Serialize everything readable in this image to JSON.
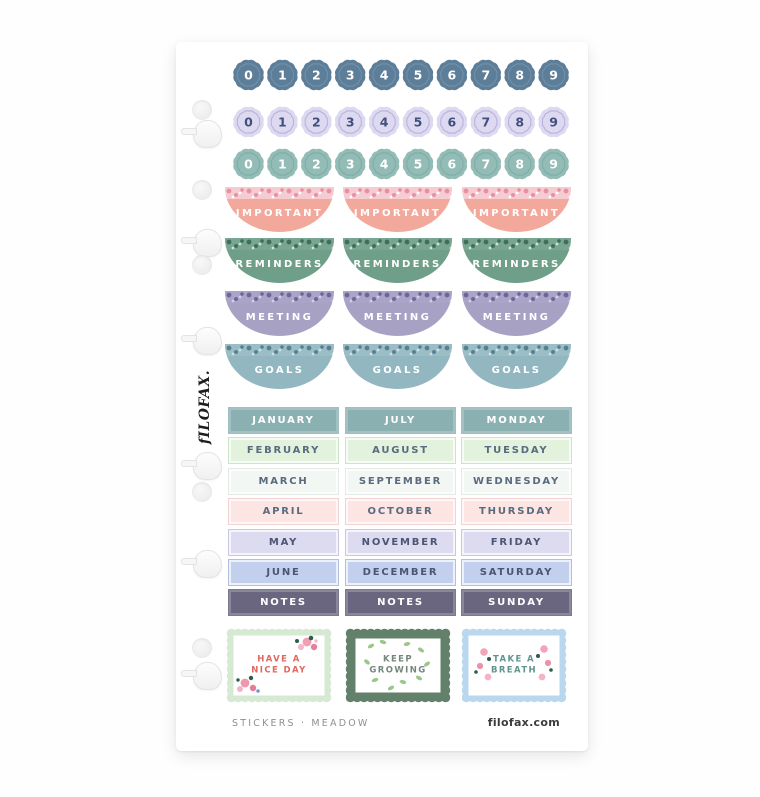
{
  "sheet": {
    "brand_vertical": "fILOFAX.",
    "footer_left": "STICKERS · MEADOW",
    "footer_right": "filofax.com"
  },
  "number_rows": [
    {
      "name": "numbers-slate",
      "digits": [
        "0",
        "1",
        "2",
        "3",
        "4",
        "5",
        "6",
        "7",
        "8",
        "9"
      ],
      "fill": "#5d7e99",
      "digit_color": "#ffffff",
      "inner_stroke": "rgba(255,255,255,0.15)"
    },
    {
      "name": "numbers-lavender",
      "digits": [
        "0",
        "1",
        "2",
        "3",
        "4",
        "5",
        "6",
        "7",
        "8",
        "9"
      ],
      "fill": "#dcd9f1",
      "digit_color": "#43507c",
      "inner_stroke": "#b6b1da"
    },
    {
      "name": "numbers-teal",
      "digits": [
        "0",
        "1",
        "2",
        "3",
        "4",
        "5",
        "6",
        "7",
        "8",
        "9"
      ],
      "fill": "#92bcb5",
      "digit_color": "#ffffff",
      "inner_stroke": "#7dada6"
    }
  ],
  "label_stickers": {
    "per_row": 3,
    "rows": [
      {
        "label": "IMPORTANT",
        "body": "#f2a89b",
        "band_bg": "#f6ccd3",
        "band_dot": "#e98f9f",
        "band_spark": "#ffffff",
        "text_color": "#ffffff"
      },
      {
        "label": "REMINDERS",
        "body": "#6f9e89",
        "band_bg": "#79a693",
        "band_dot": "#3f6f58",
        "band_spark": "#cfe2d6",
        "text_color": "#ffffff"
      },
      {
        "label": "MEETING",
        "body": "#a7a2c4",
        "band_bg": "#aaa5c8",
        "band_dot": "#6c6699",
        "band_spark": "#d3d0e6",
        "text_color": "#ffffff"
      },
      {
        "label": "GOALS",
        "body": "#92b7c1",
        "band_bg": "#9bbdc6",
        "band_dot": "#56808f",
        "band_spark": "#cfdfe4",
        "text_color": "#ffffff"
      }
    ]
  },
  "calendar_grid": {
    "columns": 3,
    "rows": [
      {
        "cells": [
          "JANUARY",
          "JULY",
          "MONDAY"
        ],
        "bg": "#8ab0b1",
        "border": "#9fc0c0",
        "text_color": "#ffffff"
      },
      {
        "cells": [
          "FEBRUARY",
          "AUGUST",
          "TUESDAY"
        ],
        "bg": "#e2f2dd",
        "border": "#cbe6c5",
        "text_color": "#5a6b80"
      },
      {
        "cells": [
          "MARCH",
          "SEPTEMBER",
          "WEDNESDAY"
        ],
        "bg": "#f3f7f4",
        "border": "#e1eae4",
        "text_color": "#5a6b80"
      },
      {
        "cells": [
          "APRIL",
          "OCTOBER",
          "THURSDAY"
        ],
        "bg": "#fce5e3",
        "border": "#f3d2d1",
        "text_color": "#5a6b80"
      },
      {
        "cells": [
          "MAY",
          "NOVEMBER",
          "FRIDAY"
        ],
        "bg": "#dcdbf0",
        "border": "#c9c7e4",
        "text_color": "#4c5574"
      },
      {
        "cells": [
          "JUNE",
          "DECEMBER",
          "SATURDAY"
        ],
        "bg": "#c2d0ed",
        "border": "#afc0e2",
        "text_color": "#4c5574"
      },
      {
        "cells": [
          "NOTES",
          "NOTES",
          "SUNDAY"
        ],
        "bg": "#6a667f",
        "border": "#7c7892",
        "text_color": "#ffffff"
      }
    ]
  },
  "stamps": [
    {
      "lines": [
        "HAVE A",
        "NICE DAY"
      ],
      "frame": "#d5e9d3",
      "text_color": "#e0685f",
      "decor": "roses",
      "thick_frame": false
    },
    {
      "lines": [
        "KEEP",
        "GROWING"
      ],
      "frame": "#62806a",
      "text_color": "#75877c",
      "decor": "leaves",
      "thick_frame": true
    },
    {
      "lines": [
        "TAKE A",
        "BREATH"
      ],
      "frame": "#b9d7ee",
      "text_color": "#61938f",
      "decor": "tulips",
      "thick_frame": false
    }
  ]
}
